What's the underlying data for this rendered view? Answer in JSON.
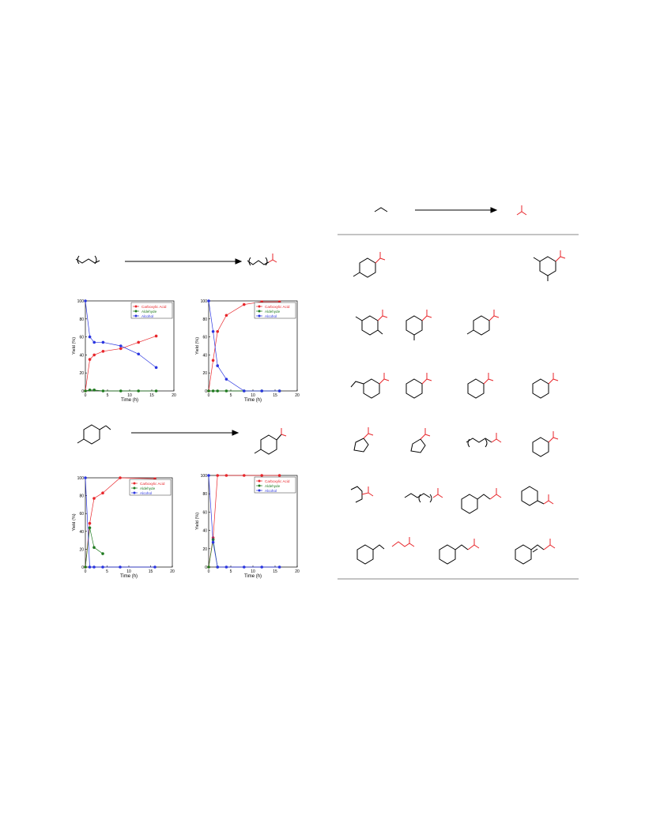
{
  "colors": {
    "carboxylic_acid": "#e8262b",
    "aldehyde": "#1f7a1f",
    "alcohol": "#2a35e0",
    "structure": "#000000",
    "product_highlight": "#e8262b"
  },
  "chart_data": [
    {
      "type": "line",
      "xlabel": "Time (h)",
      "ylabel": "Yield (%)",
      "xlim": [
        0,
        20
      ],
      "ylim": [
        0,
        100
      ],
      "xticks": [
        "0",
        "5",
        "10",
        "15",
        "20"
      ],
      "yticks": [
        "0",
        "20",
        "40",
        "60",
        "80",
        "100"
      ],
      "legend_position": "top-right",
      "series": [
        {
          "name": "Carboxylic Acid",
          "x": [
            0,
            1,
            2,
            4,
            8,
            12,
            16
          ],
          "y": [
            0,
            35,
            40,
            44,
            47,
            54,
            61
          ]
        },
        {
          "name": "Aldehyde",
          "x": [
            0,
            1,
            2,
            4,
            8,
            12,
            16
          ],
          "y": [
            0,
            1,
            1,
            0,
            0,
            0,
            0
          ]
        },
        {
          "name": "Alcohol",
          "x": [
            0,
            1,
            2,
            4,
            8,
            12,
            16
          ],
          "y": [
            100,
            60,
            54,
            54,
            50,
            41,
            26
          ]
        }
      ]
    },
    {
      "type": "line",
      "xlabel": "Time (h)",
      "ylabel": "Yield (%)",
      "xlim": [
        0,
        20
      ],
      "ylim": [
        0,
        100
      ],
      "xticks": [
        "0",
        "5",
        "10",
        "15",
        "20"
      ],
      "yticks": [
        "0",
        "20",
        "40",
        "60",
        "80",
        "100"
      ],
      "legend_position": "top-right",
      "series": [
        {
          "name": "Carboxylic Acid",
          "x": [
            0,
            1,
            2,
            4,
            8,
            12,
            16
          ],
          "y": [
            0,
            34,
            66,
            84,
            96,
            99,
            99
          ]
        },
        {
          "name": "Aldehyde",
          "x": [
            0,
            1,
            2,
            4,
            8,
            12,
            16
          ],
          "y": [
            0,
            0,
            0,
            0,
            0,
            0,
            0
          ]
        },
        {
          "name": "Alcohol",
          "x": [
            0,
            1,
            2,
            4,
            8,
            12,
            16
          ],
          "y": [
            100,
            66,
            28,
            13,
            0,
            0,
            0
          ]
        }
      ]
    },
    {
      "type": "line",
      "xlabel": "Time (h)",
      "ylabel": "Yield (%)",
      "xlim": [
        0,
        20
      ],
      "ylim": [
        0,
        100
      ],
      "xticks": [
        "0",
        "5",
        "10",
        "15",
        "20"
      ],
      "yticks": [
        "0",
        "20",
        "40",
        "60",
        "80",
        "100"
      ],
      "legend_position": "top-right",
      "series": [
        {
          "name": "Carboxylic Acid",
          "x": [
            0,
            1,
            2,
            4,
            8,
            16
          ],
          "y": [
            0,
            49,
            77,
            83,
            100,
            99
          ]
        },
        {
          "name": "Aldehyde",
          "x": [
            0,
            1,
            2,
            4
          ],
          "y": [
            0,
            44,
            22,
            15
          ]
        },
        {
          "name": "Alcohol",
          "x": [
            0,
            1,
            2,
            4,
            8,
            16
          ],
          "y": [
            100,
            0,
            0,
            0,
            0,
            0
          ]
        }
      ]
    },
    {
      "type": "line",
      "xlabel": "Time (h)",
      "ylabel": "Yield (%)",
      "xlim": [
        0,
        20
      ],
      "ylim": [
        0,
        100
      ],
      "xticks": [
        "0",
        "5",
        "10",
        "15",
        "20"
      ],
      "yticks": [
        "0",
        "20",
        "40",
        "60",
        "80",
        "100"
      ],
      "legend_position": "top-right",
      "series": [
        {
          "name": "Carboxylic Acid",
          "x": [
            0,
            1,
            2,
            4,
            8,
            12,
            16
          ],
          "y": [
            0,
            32,
            100,
            100,
            100,
            100,
            100
          ]
        },
        {
          "name": "Aldehyde",
          "x": [
            0,
            1,
            2
          ],
          "y": [
            0,
            30,
            0
          ]
        },
        {
          "name": "Alcohol",
          "x": [
            0,
            1,
            2,
            4,
            8,
            12,
            16
          ],
          "y": [
            100,
            27,
            0,
            0,
            0,
            0,
            0
          ]
        }
      ]
    }
  ]
}
